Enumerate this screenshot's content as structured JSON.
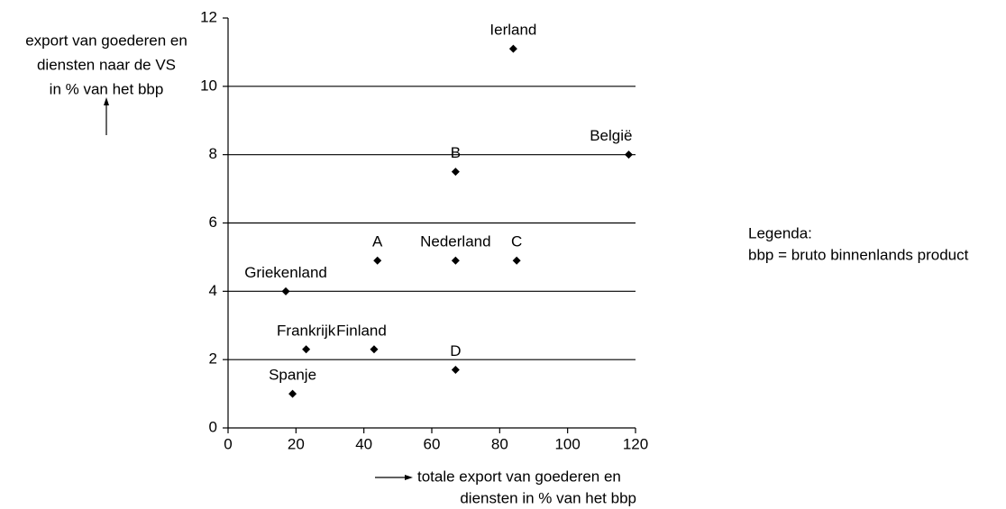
{
  "chart_data": {
    "type": "scatter",
    "y_label": [
      "export van goederen en",
      "diensten naar de VS",
      "in % van het bbp"
    ],
    "x_label": [
      "totale export van goederen en",
      "diensten in % van het bbp"
    ],
    "point_labels": [
      "Ierland",
      "België",
      "B",
      "A",
      "Nederland",
      "C",
      "Griekenland",
      "Frankrijk",
      "Finland",
      "D",
      "Spanje"
    ],
    "x": [
      84,
      118,
      67,
      44,
      67,
      85,
      17,
      23,
      43,
      67,
      19
    ],
    "values": [
      11.1,
      8.0,
      7.5,
      4.9,
      4.9,
      4.9,
      4.0,
      2.3,
      2.3,
      1.7,
      1.0
    ],
    "color": "#000000",
    "xlim": [
      0,
      120
    ],
    "xticks": [
      0,
      20,
      40,
      60,
      80,
      100,
      120
    ],
    "ylim": [
      0,
      12
    ],
    "yticks": [
      0,
      2,
      4,
      6,
      8,
      10,
      12
    ],
    "grid": true,
    "legend": [
      "Legenda:",
      "bbp = bruto binnenlands product"
    ]
  }
}
